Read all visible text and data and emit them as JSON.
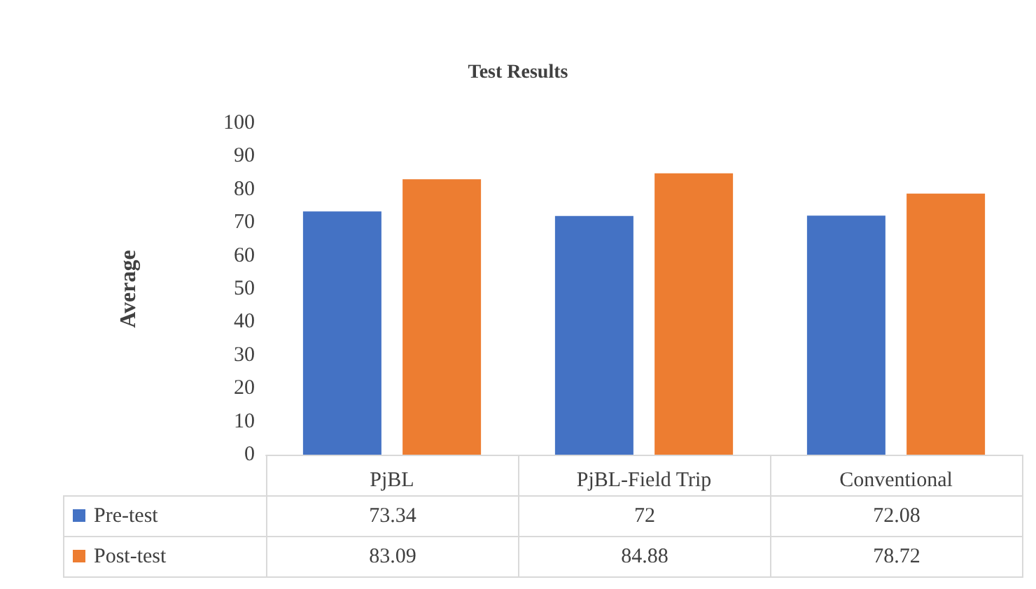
{
  "chart_data": {
    "type": "bar",
    "title": "Test Results",
    "ylabel": "Average",
    "categories": [
      "PjBL",
      "PjBL-Field Trip",
      "Conventional"
    ],
    "series": [
      {
        "name": "Pre-test",
        "color": "#4472c4",
        "values": [
          73.34,
          72,
          72.08
        ]
      },
      {
        "name": "Post-test",
        "color": "#ed7d31",
        "values": [
          83.09,
          84.88,
          78.72
        ]
      }
    ],
    "ylim": [
      0,
      100
    ],
    "yticks": [
      0,
      10,
      20,
      30,
      40,
      50,
      60,
      70,
      80,
      90,
      100
    ],
    "grid": false,
    "legend": "bottom",
    "data_labels": true
  }
}
